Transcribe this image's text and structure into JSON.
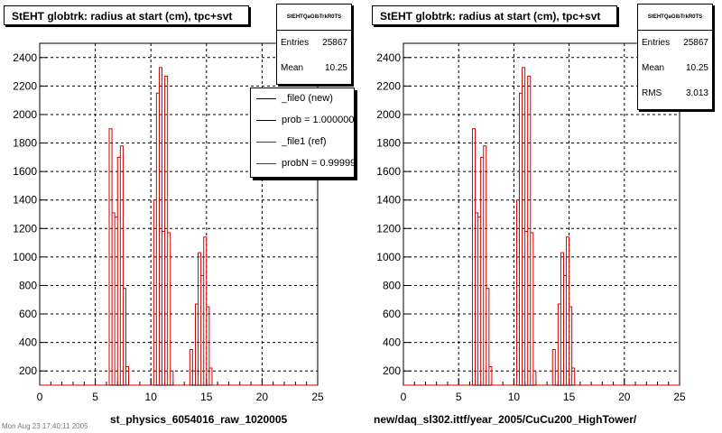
{
  "colors": {
    "ref": "#d40000",
    "new": "#000000",
    "grid": "#000000"
  },
  "footer": "Mon Aug 23 17:40:11 2005",
  "legend": [
    {
      "label": "_file0 (new)",
      "color": "#000000"
    },
    {
      "label": "prob = 1.000000",
      "color": "#000000"
    },
    {
      "label": "_file1 (ref)",
      "color": "#d40000"
    },
    {
      "label": "probN = 0.999999",
      "color": "#d40000"
    }
  ],
  "chart_data": [
    {
      "type": "histogram",
      "title": "StEHT globtrk: radius at start (cm), tpc+svt",
      "xlabel": "st_physics_6054016_raw_1020005",
      "xlim": [
        0,
        25
      ],
      "ylim": [
        100,
        2500
      ],
      "xticks": [
        0,
        5,
        10,
        15,
        20,
        25
      ],
      "yticks": [
        200,
        400,
        600,
        800,
        1000,
        1200,
        1400,
        1600,
        1800,
        2000,
        2200,
        2400
      ],
      "grid": true,
      "stats": {
        "name": "StEHTQaGlbTrkR0TS",
        "entries": "25867",
        "mean": "10.25"
      },
      "line_color": "#d40000",
      "bin_width": 0.25,
      "bins": [
        [
          6.25,
          1900
        ],
        [
          6.5,
          1310
        ],
        [
          6.75,
          1280
        ],
        [
          7.0,
          1700
        ],
        [
          7.25,
          1780
        ],
        [
          7.5,
          780
        ],
        [
          7.75,
          230
        ],
        [
          8.0,
          0
        ],
        [
          10.25,
          1400
        ],
        [
          10.5,
          2150
        ],
        [
          10.75,
          2330
        ],
        [
          11.0,
          1180
        ],
        [
          11.25,
          2270
        ],
        [
          11.5,
          1170
        ],
        [
          11.75,
          200
        ],
        [
          12.0,
          0
        ],
        [
          13.5,
          350
        ],
        [
          13.75,
          200
        ],
        [
          14.0,
          670
        ],
        [
          14.25,
          1030
        ],
        [
          14.5,
          870
        ],
        [
          14.75,
          1140
        ],
        [
          15.0,
          650
        ],
        [
          15.25,
          220
        ],
        [
          15.5,
          0
        ]
      ]
    },
    {
      "type": "histogram",
      "title": "StEHT globtrk: radius at start (cm), tpc+svt",
      "xlabel": "new/daq_sl302.ittf/year_2005/CuCu200_HighTower/",
      "xlim": [
        0,
        25
      ],
      "ylim": [
        100,
        2500
      ],
      "xticks": [
        0,
        5,
        10,
        15,
        20,
        25
      ],
      "yticks": [
        200,
        400,
        600,
        800,
        1000,
        1200,
        1400,
        1600,
        1800,
        2000,
        2200,
        2400
      ],
      "grid": true,
      "stats": {
        "name": "StEHTQaGlbTrkR0TS",
        "entries": "25867",
        "mean": "10.25",
        "rms": "3.013"
      },
      "line_color": "#d40000",
      "bin_width": 0.25,
      "bins": [
        [
          6.25,
          1900
        ],
        [
          6.5,
          1310
        ],
        [
          6.75,
          1280
        ],
        [
          7.0,
          1700
        ],
        [
          7.25,
          1780
        ],
        [
          7.5,
          780
        ],
        [
          7.75,
          230
        ],
        [
          8.0,
          0
        ],
        [
          10.25,
          1400
        ],
        [
          10.5,
          2150
        ],
        [
          10.75,
          2330
        ],
        [
          11.0,
          1180
        ],
        [
          11.25,
          2270
        ],
        [
          11.5,
          1170
        ],
        [
          11.75,
          200
        ],
        [
          12.0,
          0
        ],
        [
          13.5,
          350
        ],
        [
          13.75,
          200
        ],
        [
          14.0,
          670
        ],
        [
          14.25,
          1030
        ],
        [
          14.5,
          870
        ],
        [
          14.75,
          1140
        ],
        [
          15.0,
          650
        ],
        [
          15.25,
          220
        ],
        [
          15.5,
          0
        ]
      ]
    }
  ]
}
